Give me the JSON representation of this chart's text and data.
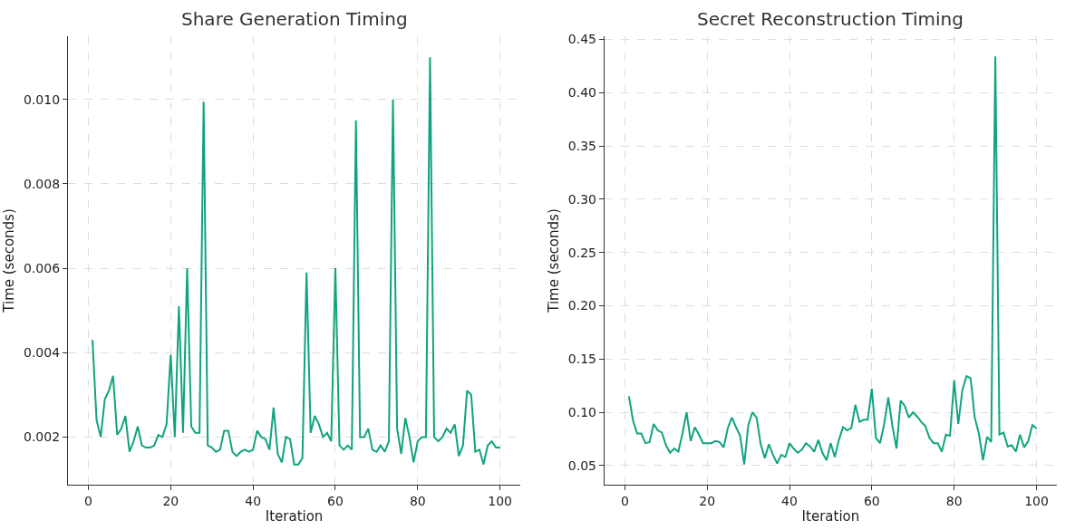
{
  "chart_data": [
    {
      "type": "line",
      "title": "Share Generation Timing",
      "xlabel": "Iteration",
      "ylabel": "Time (seconds)",
      "grid": true,
      "xlim": [
        -4.95,
        104.95
      ],
      "ylim": [
        0.00087,
        0.0115
      ],
      "xticks": [
        0,
        20,
        40,
        60,
        80,
        100
      ],
      "yticks": [
        {
          "value": 0.002,
          "label": "0.002"
        },
        {
          "value": 0.004,
          "label": "0.004"
        },
        {
          "value": 0.006,
          "label": "0.006"
        },
        {
          "value": 0.008,
          "label": "0.008"
        },
        {
          "value": 0.01,
          "label": "0.010"
        }
      ],
      "x": [
        1,
        2,
        3,
        4,
        5,
        6,
        7,
        8,
        9,
        10,
        11,
        12,
        13,
        14,
        15,
        16,
        17,
        18,
        19,
        20,
        21,
        22,
        23,
        24,
        25,
        26,
        27,
        28,
        29,
        30,
        31,
        32,
        33,
        34,
        35,
        36,
        37,
        38,
        39,
        40,
        41,
        42,
        43,
        44,
        45,
        46,
        47,
        48,
        49,
        50,
        51,
        52,
        53,
        54,
        55,
        56,
        57,
        58,
        59,
        60,
        61,
        62,
        63,
        64,
        65,
        66,
        67,
        68,
        69,
        70,
        71,
        72,
        73,
        74,
        75,
        76,
        77,
        78,
        79,
        80,
        81,
        82,
        83,
        84,
        85,
        86,
        87,
        88,
        89,
        90,
        91,
        92,
        93,
        94,
        95,
        96,
        97,
        98,
        99,
        100
      ],
      "series": [
        {
          "color": "#10a37f",
          "values": [
            0.0043,
            0.0024,
            0.002,
            0.0029,
            0.0031,
            0.00345,
            0.00205,
            0.0022,
            0.0025,
            0.00165,
            0.0019,
            0.00225,
            0.0018,
            0.00175,
            0.00175,
            0.0018,
            0.00205,
            0.002,
            0.0023,
            0.00395,
            0.002,
            0.0051,
            0.0021,
            0.006,
            0.00225,
            0.0021,
            0.0021,
            0.00995,
            0.0018,
            0.00175,
            0.00165,
            0.0017,
            0.00215,
            0.00215,
            0.00165,
            0.00155,
            0.00165,
            0.0017,
            0.00165,
            0.0017,
            0.00215,
            0.002,
            0.00195,
            0.0017,
            0.0027,
            0.0016,
            0.0014,
            0.002,
            0.00195,
            0.00135,
            0.00135,
            0.0015,
            0.0059,
            0.0021,
            0.0025,
            0.0023,
            0.002,
            0.0021,
            0.0019,
            0.006,
            0.0018,
            0.0017,
            0.0018,
            0.0017,
            0.0095,
            0.002,
            0.002,
            0.0022,
            0.0017,
            0.00165,
            0.0018,
            0.00165,
            0.0019,
            0.01,
            0.0022,
            0.0016,
            0.00245,
            0.002,
            0.0014,
            0.0019,
            0.002,
            0.002,
            0.011,
            0.002,
            0.0019,
            0.002,
            0.0022,
            0.0021,
            0.0023,
            0.00155,
            0.0018,
            0.0031,
            0.003,
            0.00165,
            0.0017,
            0.00135,
            0.0018,
            0.0019,
            0.00175,
            0.00175
          ]
        }
      ]
    },
    {
      "type": "line",
      "title": "Secret Reconstruction Timing",
      "xlabel": "Iteration",
      "ylabel": "Time (seconds)",
      "grid": true,
      "xlim": [
        -4.95,
        104.95
      ],
      "ylim": [
        0.032,
        0.453
      ],
      "xticks": [
        0,
        20,
        40,
        60,
        80,
        100
      ],
      "yticks": [
        0.05,
        {
          "value": 0.1,
          "label": "0.10"
        },
        0.15,
        {
          "value": 0.2,
          "label": "0.20"
        },
        0.25,
        {
          "value": 0.3,
          "label": "0.30"
        },
        0.35,
        {
          "value": 0.4,
          "label": "0.40"
        },
        0.45
      ],
      "x": [
        1,
        2,
        3,
        4,
        5,
        6,
        7,
        8,
        9,
        10,
        11,
        12,
        13,
        14,
        15,
        16,
        17,
        18,
        19,
        20,
        21,
        22,
        23,
        24,
        25,
        26,
        27,
        28,
        29,
        30,
        31,
        32,
        33,
        34,
        35,
        36,
        37,
        38,
        39,
        40,
        41,
        42,
        43,
        44,
        45,
        46,
        47,
        48,
        49,
        50,
        51,
        52,
        53,
        54,
        55,
        56,
        57,
        58,
        59,
        60,
        61,
        62,
        63,
        64,
        65,
        66,
        67,
        68,
        69,
        70,
        71,
        72,
        73,
        74,
        75,
        76,
        77,
        78,
        79,
        80,
        81,
        82,
        83,
        84,
        85,
        86,
        87,
        88,
        89,
        90,
        91,
        92,
        93,
        94,
        95,
        96,
        97,
        98,
        99,
        100
      ],
      "series": [
        {
          "color": "#10a37f",
          "values": [
            0.115,
            0.092,
            0.08,
            0.08,
            0.071,
            0.072,
            0.089,
            0.083,
            0.081,
            0.069,
            0.062,
            0.066,
            0.063,
            0.08,
            0.1,
            0.073,
            0.086,
            0.079,
            0.071,
            0.071,
            0.071,
            0.073,
            0.072,
            0.067,
            0.085,
            0.095,
            0.086,
            0.078,
            0.051,
            0.088,
            0.1,
            0.095,
            0.07,
            0.057,
            0.07,
            0.06,
            0.052,
            0.06,
            0.058,
            0.071,
            0.066,
            0.062,
            0.065,
            0.071,
            0.068,
            0.063,
            0.074,
            0.062,
            0.055,
            0.071,
            0.058,
            0.074,
            0.086,
            0.083,
            0.085,
            0.107,
            0.091,
            0.093,
            0.093,
            0.122,
            0.076,
            0.071,
            0.089,
            0.114,
            0.087,
            0.066,
            0.111,
            0.106,
            0.095,
            0.1,
            0.096,
            0.091,
            0.087,
            0.076,
            0.071,
            0.071,
            0.063,
            0.079,
            0.078,
            0.13,
            0.089,
            0.121,
            0.134,
            0.132,
            0.095,
            0.08,
            0.055,
            0.077,
            0.072,
            0.434,
            0.079,
            0.081,
            0.068,
            0.069,
            0.063,
            0.079,
            0.067,
            0.073,
            0.088,
            0.085
          ]
        }
      ]
    }
  ]
}
